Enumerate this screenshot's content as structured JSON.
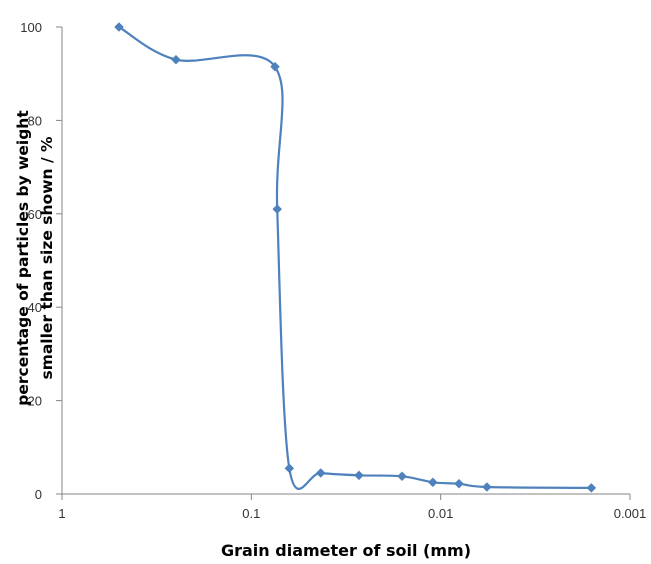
{
  "chart_data": {
    "type": "line",
    "title": "",
    "xlabel": "Grain diameter of soil  (mm)",
    "ylabel_line1": "percentage  of  particles  by  weight",
    "ylabel_line2": "smaller  than  size  shown  / %",
    "x_scale": "log",
    "x_reversed": true,
    "xlim": [
      1,
      0.001
    ],
    "ylim": [
      0,
      100
    ],
    "x_ticks": [
      1,
      0.1,
      0.01,
      0.001
    ],
    "x_tick_labels": [
      "1",
      "0.1",
      "0.01",
      "0.001"
    ],
    "y_ticks": [
      0,
      20,
      40,
      60,
      80,
      100
    ],
    "y_tick_labels": [
      "0",
      "20",
      "40",
      "60",
      "80",
      "100"
    ],
    "grid": false,
    "smooth": true,
    "marker": "diamond",
    "series": [
      {
        "color": "#4f81bd",
        "x": [
          0.5,
          0.25,
          0.075,
          0.073,
          0.063,
          0.043,
          0.027,
          0.016,
          0.011,
          0.008,
          0.0057,
          0.0016
        ],
        "y": [
          100,
          93,
          91.5,
          61,
          5.5,
          4.5,
          4,
          3.8,
          2.5,
          2.2,
          1.5,
          1.3
        ]
      }
    ]
  }
}
